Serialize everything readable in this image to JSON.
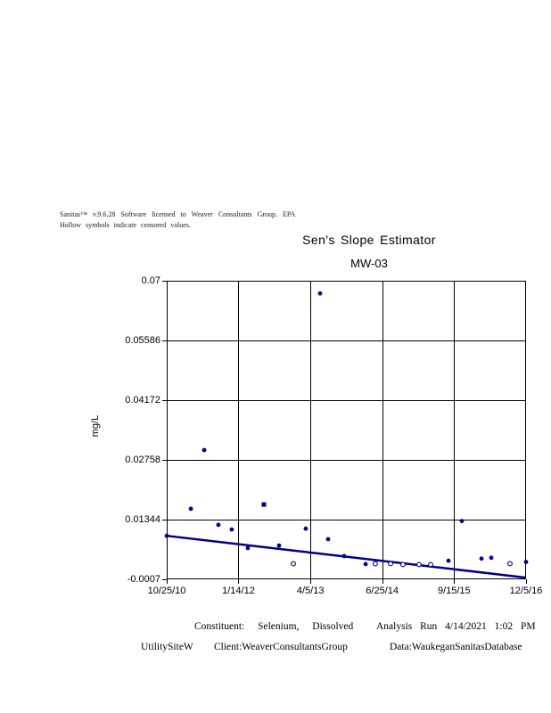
{
  "disclaimer": {
    "line1": "Sanitas™ v.9.6.28 Software licensed to Weaver Consultants Group. EPA",
    "line2": "Hollow symbols indicate censored values."
  },
  "chart_data": {
    "type": "scatter",
    "title": "Sen's Slope Estimator",
    "subtitle": "MW-03",
    "ylabel": "mg/L",
    "ylim": [
      -0.0007,
      0.07
    ],
    "grid": true,
    "marker_color": "#000080",
    "trend_color": "#000080",
    "axis_color": "#000000",
    "y_ticks": [
      {
        "label": "0.07",
        "value": 0.07
      },
      {
        "label": "0.05586",
        "value": 0.05586
      },
      {
        "label": "0.04172",
        "value": 0.04172
      },
      {
        "label": "0.02758",
        "value": 0.02758
      },
      {
        "label": "0.01344",
        "value": 0.01344
      },
      {
        "label": "-0.0007",
        "value": -0.0007
      }
    ],
    "x_ticks": [
      {
        "label": "10/25/10",
        "date": "10/25/10"
      },
      {
        "label": "1/14/12",
        "date": "1/14/12"
      },
      {
        "label": "4/5/13",
        "date": "4/5/13"
      },
      {
        "label": "6/25/14",
        "date": "6/25/14"
      },
      {
        "label": "9/15/15",
        "date": "9/15/15"
      },
      {
        "label": "12/5/16",
        "date": "12/5/16"
      }
    ],
    "points": [
      {
        "date": "10/25/10",
        "value": 0.0096,
        "marker": "filled",
        "censored": false
      },
      {
        "date": "3/24/11",
        "value": 0.016,
        "marker": "filled",
        "censored": false
      },
      {
        "date": "6/15/11",
        "value": 0.0299,
        "marker": "filled",
        "censored": false
      },
      {
        "date": "9/11/11",
        "value": 0.0122,
        "marker": "filled",
        "censored": false
      },
      {
        "date": "12/3/11",
        "value": 0.0111,
        "marker": "filled",
        "censored": false
      },
      {
        "date": "3/12/12",
        "value": 0.0067,
        "marker": "filled",
        "censored": false
      },
      {
        "date": "6/20/12",
        "value": 0.017,
        "marker": "square",
        "censored": false
      },
      {
        "date": "9/22/12",
        "value": 0.0073,
        "marker": "filled",
        "censored": false
      },
      {
        "date": "12/20/12",
        "value": 0.003,
        "marker": "open",
        "censored": true
      },
      {
        "date": "3/7/13",
        "value": 0.0113,
        "marker": "filled",
        "censored": false
      },
      {
        "date": "6/4/13",
        "value": 0.067,
        "marker": "filled",
        "censored": false
      },
      {
        "date": "7/24/13",
        "value": 0.0088,
        "marker": "filled",
        "censored": false
      },
      {
        "date": "11/1/13",
        "value": 0.0048,
        "marker": "filled",
        "censored": false
      },
      {
        "date": "3/14/14",
        "value": 0.0029,
        "marker": "filled",
        "censored": false
      },
      {
        "date": "5/13/14",
        "value": 0.003,
        "marker": "open",
        "censored": true
      },
      {
        "date": "8/16/14",
        "value": 0.003,
        "marker": "open",
        "censored": true
      },
      {
        "date": "11/1/14",
        "value": 0.0028,
        "marker": "open",
        "censored": true
      },
      {
        "date": "2/9/15",
        "value": 0.0028,
        "marker": "open",
        "censored": true
      },
      {
        "date": "4/22/15",
        "value": 0.0028,
        "marker": "open",
        "censored": true
      },
      {
        "date": "8/11/15",
        "value": 0.0037,
        "marker": "filled",
        "censored": false
      },
      {
        "date": "11/2/15",
        "value": 0.0131,
        "marker": "filled",
        "censored": false
      },
      {
        "date": "3/3/16",
        "value": 0.0042,
        "marker": "filled",
        "censored": false
      },
      {
        "date": "5/3/16",
        "value": 0.0044,
        "marker": "filled",
        "censored": false
      },
      {
        "date": "8/27/16",
        "value": 0.003,
        "marker": "open",
        "censored": true
      },
      {
        "date": "12/5/16",
        "value": 0.0034,
        "marker": "filled",
        "censored": false
      }
    ],
    "trend_line": {
      "start_date": "10/25/10",
      "start_value": 0.0096,
      "end_date": "12/5/16",
      "end_value": -0.0003
    }
  },
  "footer": {
    "constituent": "Constituent: Selenium, Dissolved",
    "analysis_run": "Analysis Run 4/14/2021 1:02 PM",
    "site": "UtilitySiteW",
    "client": "Client:WeaverConsultantsGroup",
    "data_source": "Data:WaukeganSanitasDatabase"
  }
}
